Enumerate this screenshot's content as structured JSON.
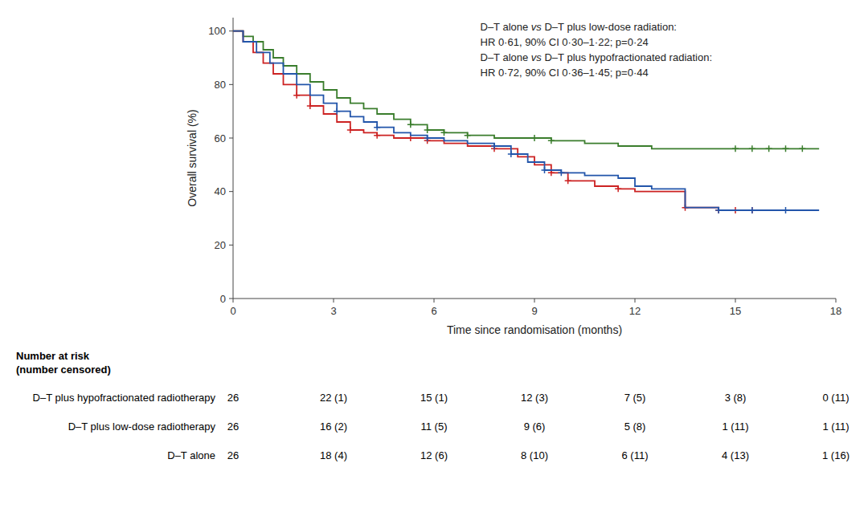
{
  "chart_data": {
    "type": "step",
    "xlabel": "Time since randomisation (months)",
    "ylabel": "Overall survival (%)",
    "xlim": [
      0,
      18
    ],
    "ylim": [
      0,
      105
    ],
    "xticks": [
      0,
      3,
      6,
      9,
      12,
      15,
      18
    ],
    "yticks": [
      0,
      20,
      40,
      60,
      80,
      100
    ],
    "grid": false,
    "series": [
      {
        "color": "#3a7d2c",
        "x": [
          0,
          0.3,
          0.6,
          0.9,
          1.2,
          1.5,
          1.9,
          2.3,
          2.7,
          3.1,
          3.5,
          3.9,
          4.3,
          4.8,
          5.3,
          5.8,
          6.3,
          7.0,
          7.8,
          8.5,
          9.0,
          9.5,
          10.5,
          11.5,
          12.5,
          13.5,
          14.5,
          15.5,
          16.5,
          17.5
        ],
        "values": [
          100,
          98,
          96,
          93,
          90,
          87,
          84,
          81,
          78,
          75,
          73,
          71,
          69,
          67,
          65,
          63,
          62,
          61,
          60,
          60,
          60,
          59,
          58,
          57,
          56,
          56,
          56,
          56,
          56,
          56
        ],
        "censors": [
          5.3,
          5.8,
          6.3,
          7.0,
          9.0,
          9.5,
          15.0,
          15.5,
          16.0,
          16.5,
          17.0
        ]
      },
      {
        "color": "#cc2222",
        "x": [
          0,
          0.3,
          0.6,
          0.9,
          1.2,
          1.5,
          1.9,
          2.3,
          2.7,
          3.1,
          3.5,
          3.9,
          4.3,
          4.8,
          5.3,
          5.8,
          6.3,
          7.0,
          7.8,
          8.5,
          9.0,
          9.5,
          10.0,
          10.8,
          11.5,
          12.0,
          12.5,
          13.5,
          14.5,
          15.5,
          16.5
        ],
        "values": [
          100,
          96,
          92,
          88,
          84,
          80,
          76,
          72,
          69,
          66,
          63,
          62,
          61,
          60,
          60,
          59,
          58,
          57,
          56,
          53,
          50,
          47,
          44,
          42,
          41,
          40,
          40,
          34,
          33,
          33,
          33
        ],
        "censors": [
          1.9,
          2.3,
          3.5,
          4.3,
          5.3,
          5.8,
          7.8,
          9.5,
          10.0,
          11.5,
          13.5,
          14.5,
          15.0,
          15.5
        ]
      },
      {
        "color": "#2255aa",
        "x": [
          0,
          0.3,
          0.7,
          1.1,
          1.5,
          1.9,
          2.3,
          2.7,
          3.1,
          3.5,
          3.9,
          4.3,
          4.8,
          5.3,
          5.8,
          6.3,
          7.0,
          7.8,
          8.3,
          8.8,
          9.3,
          9.8,
          10.5,
          11.5,
          12.0,
          12.5,
          13.5,
          14.5,
          15.5,
          16.5,
          17.5
        ],
        "values": [
          100,
          96,
          92,
          88,
          84,
          80,
          76,
          73,
          70,
          68,
          66,
          64,
          62,
          61,
          60,
          59,
          58,
          57,
          54,
          51,
          48,
          47,
          46,
          45,
          42,
          41,
          34,
          33,
          33,
          33,
          33
        ],
        "censors": [
          3.1,
          4.3,
          5.8,
          7.8,
          8.3,
          9.3,
          9.8,
          14.5,
          15.5,
          16.5
        ]
      }
    ],
    "annotations": [
      [
        "D–T alone ",
        "vs",
        " D–T plus low-dose radiation:"
      ],
      [
        "HR 0·61, 90% CI 0·30–1·22; p=0·24"
      ],
      [
        "D–T alone ",
        "vs",
        " D–T plus hypofractionated radiation:"
      ],
      [
        "HR 0·72, 90% CI 0·36–1·45; p=0·44"
      ]
    ],
    "risk_table": {
      "header": [
        "Number at risk",
        "(number censored)"
      ],
      "rows": [
        {
          "label": "D–T plus hypofractionated radiotherapy",
          "values": [
            "26",
            "22 (1)",
            "15 (1)",
            "12 (3)",
            "7 (5)",
            "3 (8)",
            "0 (11)"
          ]
        },
        {
          "label": "D–T plus low-dose radiotherapy",
          "values": [
            "26",
            "16 (2)",
            "11 (5)",
            "9 (6)",
            "5 (8)",
            "1 (11)",
            "1 (11)"
          ]
        },
        {
          "label": "D–T alone",
          "values": [
            "26",
            "18 (4)",
            "12 (6)",
            "8 (10)",
            "6 (11)",
            "4 (13)",
            "1 (16)"
          ]
        }
      ]
    }
  }
}
